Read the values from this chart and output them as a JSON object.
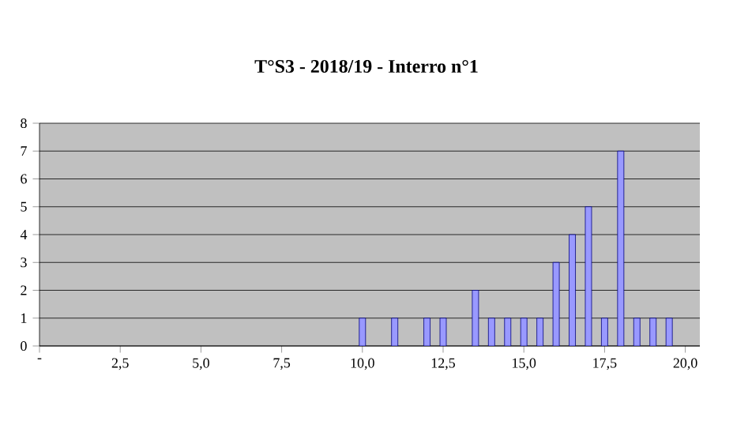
{
  "chart_data": {
    "type": "bar",
    "title": "T°S3 - 2018/19 - Interro n°1",
    "x": [
      10,
      11,
      12,
      12.5,
      13.5,
      14,
      14.5,
      15,
      15.5,
      16,
      16.5,
      17,
      17.5,
      18,
      18.5,
      19,
      19.5
    ],
    "values": [
      1,
      1,
      1,
      1,
      2,
      1,
      1,
      1,
      1,
      3,
      4,
      5,
      1,
      7,
      1,
      1,
      1
    ],
    "color": "#9999ff",
    "xlim": [
      0,
      20.45
    ],
    "ylim": [
      0,
      8
    ],
    "xticks": [
      {
        "value": 0,
        "label": "-"
      },
      {
        "value": 2.5,
        "label": "2,5"
      },
      {
        "value": 5,
        "label": "5,0"
      },
      {
        "value": 7.5,
        "label": "7,5"
      },
      {
        "value": 10,
        "label": "10,0"
      },
      {
        "value": 12.5,
        "label": "12,5"
      },
      {
        "value": 15,
        "label": "15,0"
      },
      {
        "value": 17.5,
        "label": "17,5"
      },
      {
        "value": 20,
        "label": "20,0"
      }
    ],
    "yticks": [
      0,
      1,
      2,
      3,
      4,
      5,
      6,
      7,
      8
    ],
    "grid": "y"
  }
}
